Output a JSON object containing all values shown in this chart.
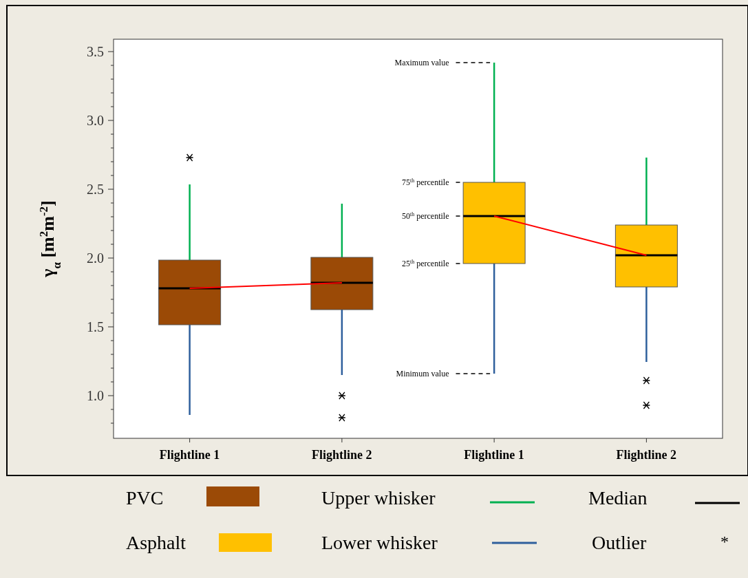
{
  "chart_data": {
    "type": "box",
    "ylabel": "γ$_{α}$ [m$^{2}$m$^{-2}$]",
    "categories": [
      "Flightline 1",
      "Flightline 2",
      "Flightline 1",
      "Flightline 2"
    ],
    "series": [
      {
        "name": "PVC",
        "color": "#9b4a06",
        "boxes": [
          {
            "low": 0.86,
            "q1": 1.515,
            "median": 1.78,
            "q3": 1.985,
            "high": 2.535,
            "outliers": [
              2.73
            ]
          },
          {
            "low": 1.15,
            "q1": 1.625,
            "median": 1.82,
            "q3": 2.005,
            "high": 2.395,
            "outliers": [
              1.0,
              0.84
            ]
          },
          null,
          null
        ]
      },
      {
        "name": "Asphalt",
        "color": "#ffc000",
        "boxes": [
          null,
          null,
          {
            "low": 1.16,
            "q1": 1.96,
            "median": 2.305,
            "q3": 2.55,
            "high": 3.42
          },
          {
            "low": 1.245,
            "q1": 1.79,
            "median": 2.02,
            "q3": 2.24,
            "high": 2.73,
            "outliers": [
              1.11,
              0.93
            ]
          }
        ]
      },
      {
        "type": "line",
        "color": "#ff0000",
        "values": [
          1.78,
          1.82,
          null,
          null
        ]
      },
      {
        "type": "line",
        "color": "#ff0000",
        "values": [
          null,
          null,
          2.305,
          2.02
        ]
      }
    ],
    "ylim": [
      0.69,
      3.59
    ],
    "yticks": [
      {
        "value": 0.8,
        "label": null
      },
      {
        "value": 0.9,
        "label": null
      },
      {
        "value": 1,
        "label": "1.0"
      },
      {
        "value": 1.1,
        "label": null
      },
      {
        "value": 1.2,
        "label": null
      },
      {
        "value": 1.3,
        "label": null
      },
      {
        "value": 1.4,
        "label": null
      },
      {
        "value": 1.5,
        "label": "1.5"
      },
      {
        "value": 1.6,
        "label": null
      },
      {
        "value": 1.7,
        "label": null
      },
      {
        "value": 1.8,
        "label": null
      },
      {
        "value": 1.9,
        "label": null
      },
      {
        "value": 2,
        "label": "2.0"
      },
      {
        "value": 2.1,
        "label": null
      },
      {
        "value": 2.2,
        "label": null
      },
      {
        "value": 2.3,
        "label": null
      },
      {
        "value": 2.4,
        "label": null
      },
      {
        "value": 2.5,
        "label": "2.5"
      },
      {
        "value": 2.6,
        "label": null
      },
      {
        "value": 2.7,
        "label": null
      },
      {
        "value": 2.8,
        "label": null
      },
      {
        "value": 2.9,
        "label": null
      },
      {
        "value": 3,
        "label": "3.0"
      },
      {
        "value": 3.1,
        "label": null
      },
      {
        "value": 3.2,
        "label": null
      },
      {
        "value": 3.3,
        "label": null
      },
      {
        "value": 3.4,
        "label": null
      },
      {
        "value": 3.5,
        "label": "3.5"
      }
    ],
    "grid": false,
    "legend": "bottom",
    "annotations": [
      "Maximum value",
      "75$^{th}$ percentile",
      "50$^{th}$ percentile",
      "25$^{th}$ percentile",
      "Minimum value",
      "Upper whisker",
      "Lower whisker",
      "Median",
      "Outlier",
      "*"
    ]
  }
}
